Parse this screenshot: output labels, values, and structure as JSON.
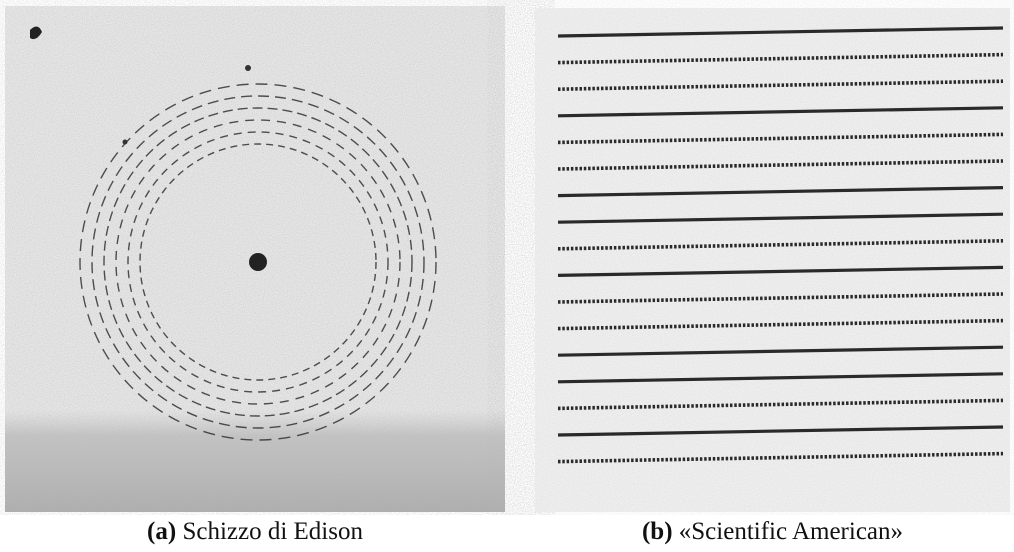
{
  "figure": {
    "subfigures": [
      {
        "label": "(a)",
        "caption": "Schizzo di Edison"
      },
      {
        "label": "(b)",
        "caption": "«Scientific American»"
      }
    ]
  }
}
